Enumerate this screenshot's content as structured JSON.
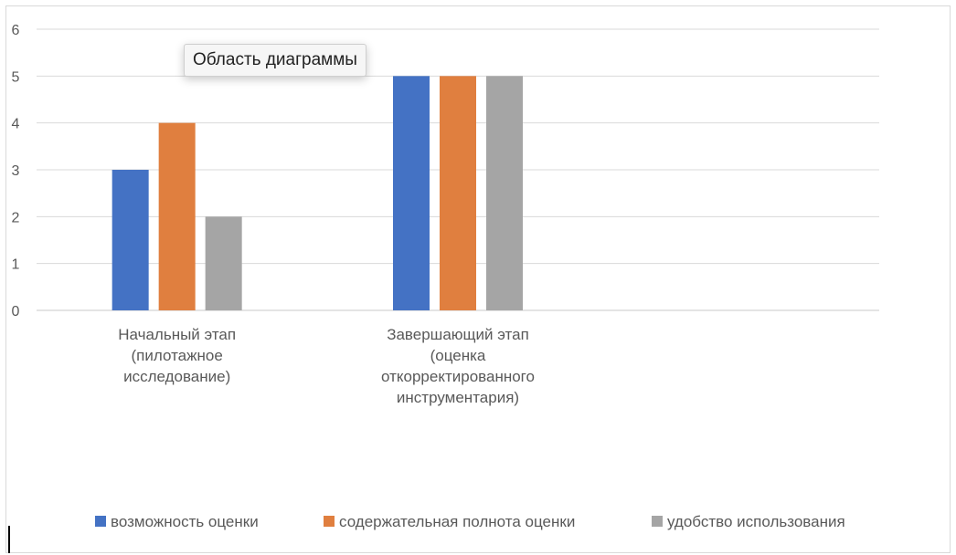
{
  "tooltip": {
    "text": "Область диаграммы"
  },
  "chart_data": {
    "type": "bar",
    "categories": [
      [
        "Начальный этап",
        "(пилотажное",
        "исследование)"
      ],
      [
        "Завершающий этап",
        "(оценка",
        "откорректированного",
        "инструментария)"
      ],
      []
    ],
    "series": [
      {
        "name": "возможность оценки",
        "color": "#4472c4",
        "values": [
          3,
          5,
          null
        ]
      },
      {
        "name": "содержательная полнота оценки",
        "color": "#e07f3f",
        "values": [
          4,
          5,
          null
        ]
      },
      {
        "name": "удобство использования",
        "color": "#a5a5a5",
        "values": [
          2,
          5,
          null
        ]
      }
    ],
    "ylim": [
      0,
      6
    ],
    "yticks": [
      0,
      1,
      2,
      3,
      4,
      5,
      6
    ],
    "grid": true,
    "legend": "bottom",
    "title": "",
    "xlabel": "",
    "ylabel": ""
  }
}
